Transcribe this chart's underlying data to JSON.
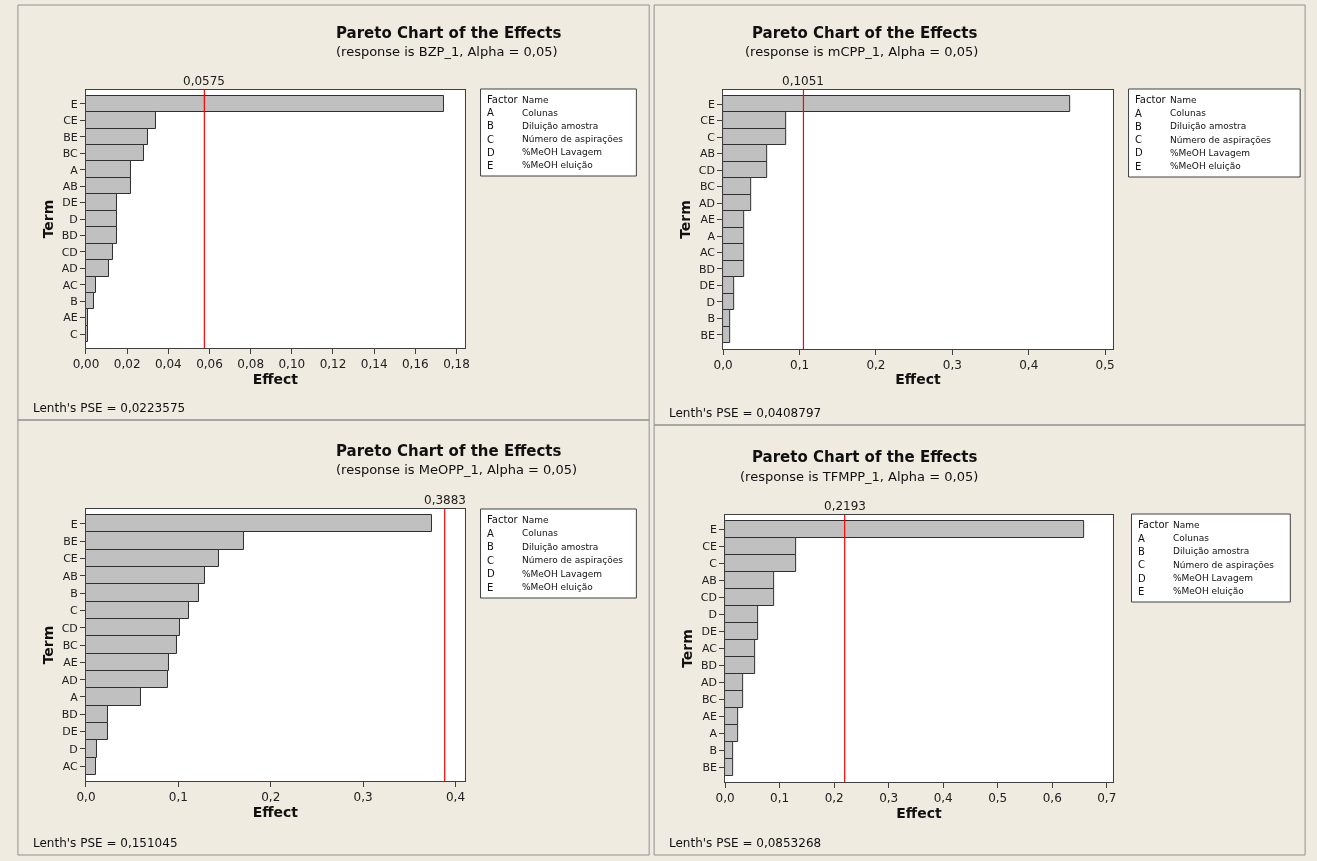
{
  "chart_data": [
    {
      "type": "bar",
      "orientation": "horizontal",
      "title": "Pareto Chart of the Effects",
      "subtitle": "(response is BZP_1, Alpha = 0,05)",
      "xlabel": "Effect",
      "ylabel": "Term",
      "categories": [
        "E",
        "CE",
        "BE",
        "BC",
        "A",
        "AB",
        "DE",
        "D",
        "BD",
        "CD",
        "AD",
        "AC",
        "B",
        "AE",
        "C"
      ],
      "values": [
        0.174,
        0.034,
        0.03,
        0.028,
        0.022,
        0.022,
        0.015,
        0.015,
        0.015,
        0.013,
        0.011,
        0.005,
        0.004,
        0.001,
        0.001
      ],
      "color": "#c0c0c0",
      "xlim": [
        0,
        0.184
      ],
      "xticks": [
        {
          "value": 0,
          "label": "0,00"
        },
        {
          "value": 0.02,
          "label": "0,02"
        },
        {
          "value": 0.04,
          "label": "0,04"
        },
        {
          "value": 0.06,
          "label": "0,06"
        },
        {
          "value": 0.08,
          "label": "0,08"
        },
        {
          "value": 0.1,
          "label": "0,10"
        },
        {
          "value": 0.12,
          "label": "0,12"
        },
        {
          "value": 0.14,
          "label": "0,14"
        },
        {
          "value": 0.16,
          "label": "0,16"
        },
        {
          "value": 0.18,
          "label": "0,18"
        }
      ],
      "ref_lines": [
        {
          "axis": "x",
          "value": 0.0575,
          "label": "0,0575",
          "color": "#ff0000"
        }
      ],
      "annotations": [
        "Lenth's PSE = 0,0223575",
        "Factor Name",
        "A Colunas",
        "B Diluição amostra",
        "C Número de aspirações",
        "D %MeOH Lavagem",
        "E %MeOH eluição"
      ]
    },
    {
      "type": "bar",
      "orientation": "horizontal",
      "title": "Pareto Chart of the Effects",
      "subtitle": "(response is mCPP_1, Alpha = 0,05)",
      "xlabel": "Effect",
      "ylabel": "Term",
      "categories": [
        "E",
        "CE",
        "C",
        "AB",
        "CD",
        "BC",
        "AD",
        "AE",
        "A",
        "AC",
        "BD",
        "DE",
        "D",
        "B",
        "BE"
      ],
      "values": [
        0.454,
        0.082,
        0.082,
        0.057,
        0.057,
        0.037,
        0.037,
        0.027,
        0.027,
        0.027,
        0.027,
        0.015,
        0.015,
        0.009,
        0.009
      ],
      "color": "#c0c0c0",
      "xlim": [
        0,
        0.51
      ],
      "xticks": [
        {
          "value": 0,
          "label": "0,0"
        },
        {
          "value": 0.1,
          "label": "0,1"
        },
        {
          "value": 0.2,
          "label": "0,2"
        },
        {
          "value": 0.3,
          "label": "0,3"
        },
        {
          "value": 0.4,
          "label": "0,4"
        },
        {
          "value": 0.5,
          "label": "0,5"
        }
      ],
      "ref_lines": [
        {
          "axis": "x",
          "value": 0.1051,
          "label": "0,1051",
          "color": "#ff0000"
        }
      ],
      "annotations": [
        "Lenth's PSE = 0,0408797",
        "Factor Name",
        "A Colunas",
        "B Diluição amostra",
        "C Número de aspirações",
        "D %MeOH Lavagem",
        "E %MeOH eluição"
      ]
    },
    {
      "type": "bar",
      "orientation": "horizontal",
      "title": "Pareto Chart of the Effects",
      "subtitle": "(response is MeOPP_1, Alpha = 0,05)",
      "xlabel": "Effect",
      "ylabel": "Term",
      "categories": [
        "E",
        "BE",
        "CE",
        "AB",
        "B",
        "C",
        "CD",
        "BC",
        "AE",
        "AD",
        "A",
        "BD",
        "DE",
        "D",
        "AC"
      ],
      "values": [
        0.374,
        0.171,
        0.144,
        0.129,
        0.122,
        0.111,
        0.102,
        0.099,
        0.09,
        0.089,
        0.06,
        0.024,
        0.024,
        0.012,
        0.011
      ],
      "color": "#c0c0c0",
      "xlim": [
        0,
        0.41
      ],
      "xticks": [
        {
          "value": 0,
          "label": "0,0"
        },
        {
          "value": 0.1,
          "label": "0,1"
        },
        {
          "value": 0.2,
          "label": "0,2"
        },
        {
          "value": 0.3,
          "label": "0,3"
        },
        {
          "value": 0.4,
          "label": "0,4"
        }
      ],
      "ref_lines": [
        {
          "axis": "x",
          "value": 0.3883,
          "label": "0,3883",
          "color": "#ff0000"
        }
      ],
      "annotations": [
        "Lenth's PSE = 0,151045",
        "Factor Name",
        "A Colunas",
        "B Diluição amostra",
        "C Número de aspirações",
        "D %MeOH Lavagem",
        "E %MeOH eluição"
      ]
    },
    {
      "type": "bar",
      "orientation": "horizontal",
      "title": "Pareto Chart of the Effects",
      "subtitle": "(response is TFMPP_1, Alpha = 0,05)",
      "xlabel": "Effect",
      "ylabel": "Term",
      "categories": [
        "E",
        "CE",
        "C",
        "AB",
        "CD",
        "D",
        "DE",
        "AC",
        "BD",
        "AD",
        "BC",
        "AE",
        "A",
        "B",
        "BE"
      ],
      "values": [
        0.659,
        0.13,
        0.13,
        0.089,
        0.089,
        0.06,
        0.06,
        0.055,
        0.055,
        0.033,
        0.033,
        0.024,
        0.024,
        0.014,
        0.014
      ],
      "color": "#c0c0c0",
      "xlim": [
        0,
        0.711
      ],
      "xticks": [
        {
          "value": 0,
          "label": "0,0"
        },
        {
          "value": 0.1,
          "label": "0,1"
        },
        {
          "value": 0.2,
          "label": "0,2"
        },
        {
          "value": 0.3,
          "label": "0,3"
        },
        {
          "value": 0.4,
          "label": "0,4"
        },
        {
          "value": 0.5,
          "label": "0,5"
        },
        {
          "value": 0.6,
          "label": "0,6"
        },
        {
          "value": 0.7,
          "label": "0,7"
        }
      ],
      "ref_lines": [
        {
          "axis": "x",
          "value": 0.2193,
          "label": "0,2193",
          "color": "#ff0000"
        }
      ],
      "annotations": [
        "Lenth's PSE = 0,0853268",
        "Factor Name",
        "A Colunas",
        "B Diluição amostra",
        "C Número de aspirações",
        "D %MeOH Lavagem",
        "E %MeOH eluição"
      ]
    }
  ]
}
